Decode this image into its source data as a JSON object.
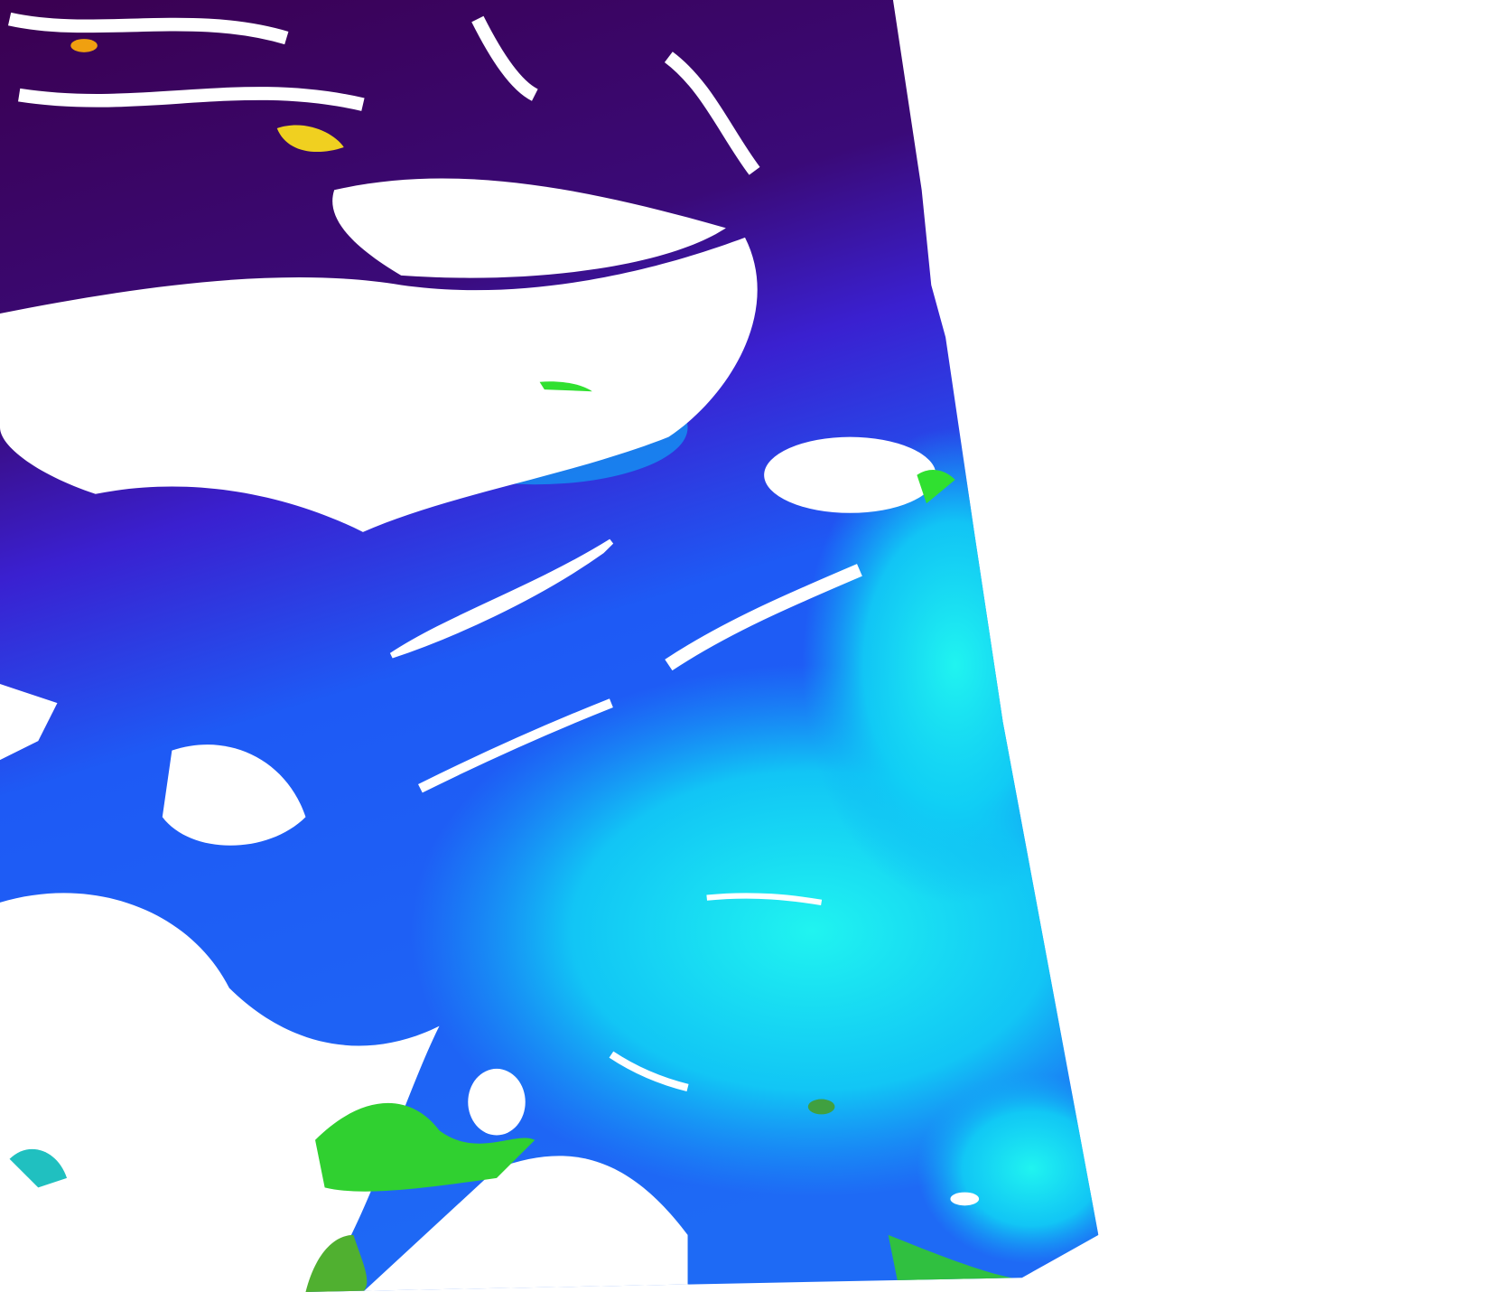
{
  "map": {
    "kind": "satellite ocean color swath",
    "colors": {
      "background": "#ffffff",
      "very_low": "#3a0050",
      "low": "#3a10c8",
      "medium_low": "#1e5af5",
      "medium": "#0fb4f5",
      "medium_high": "#10f0f0",
      "high": "#20d020",
      "very_high": "#f0d020",
      "extreme": "#f08010",
      "cloud_mask": "#ffffff"
    }
  }
}
